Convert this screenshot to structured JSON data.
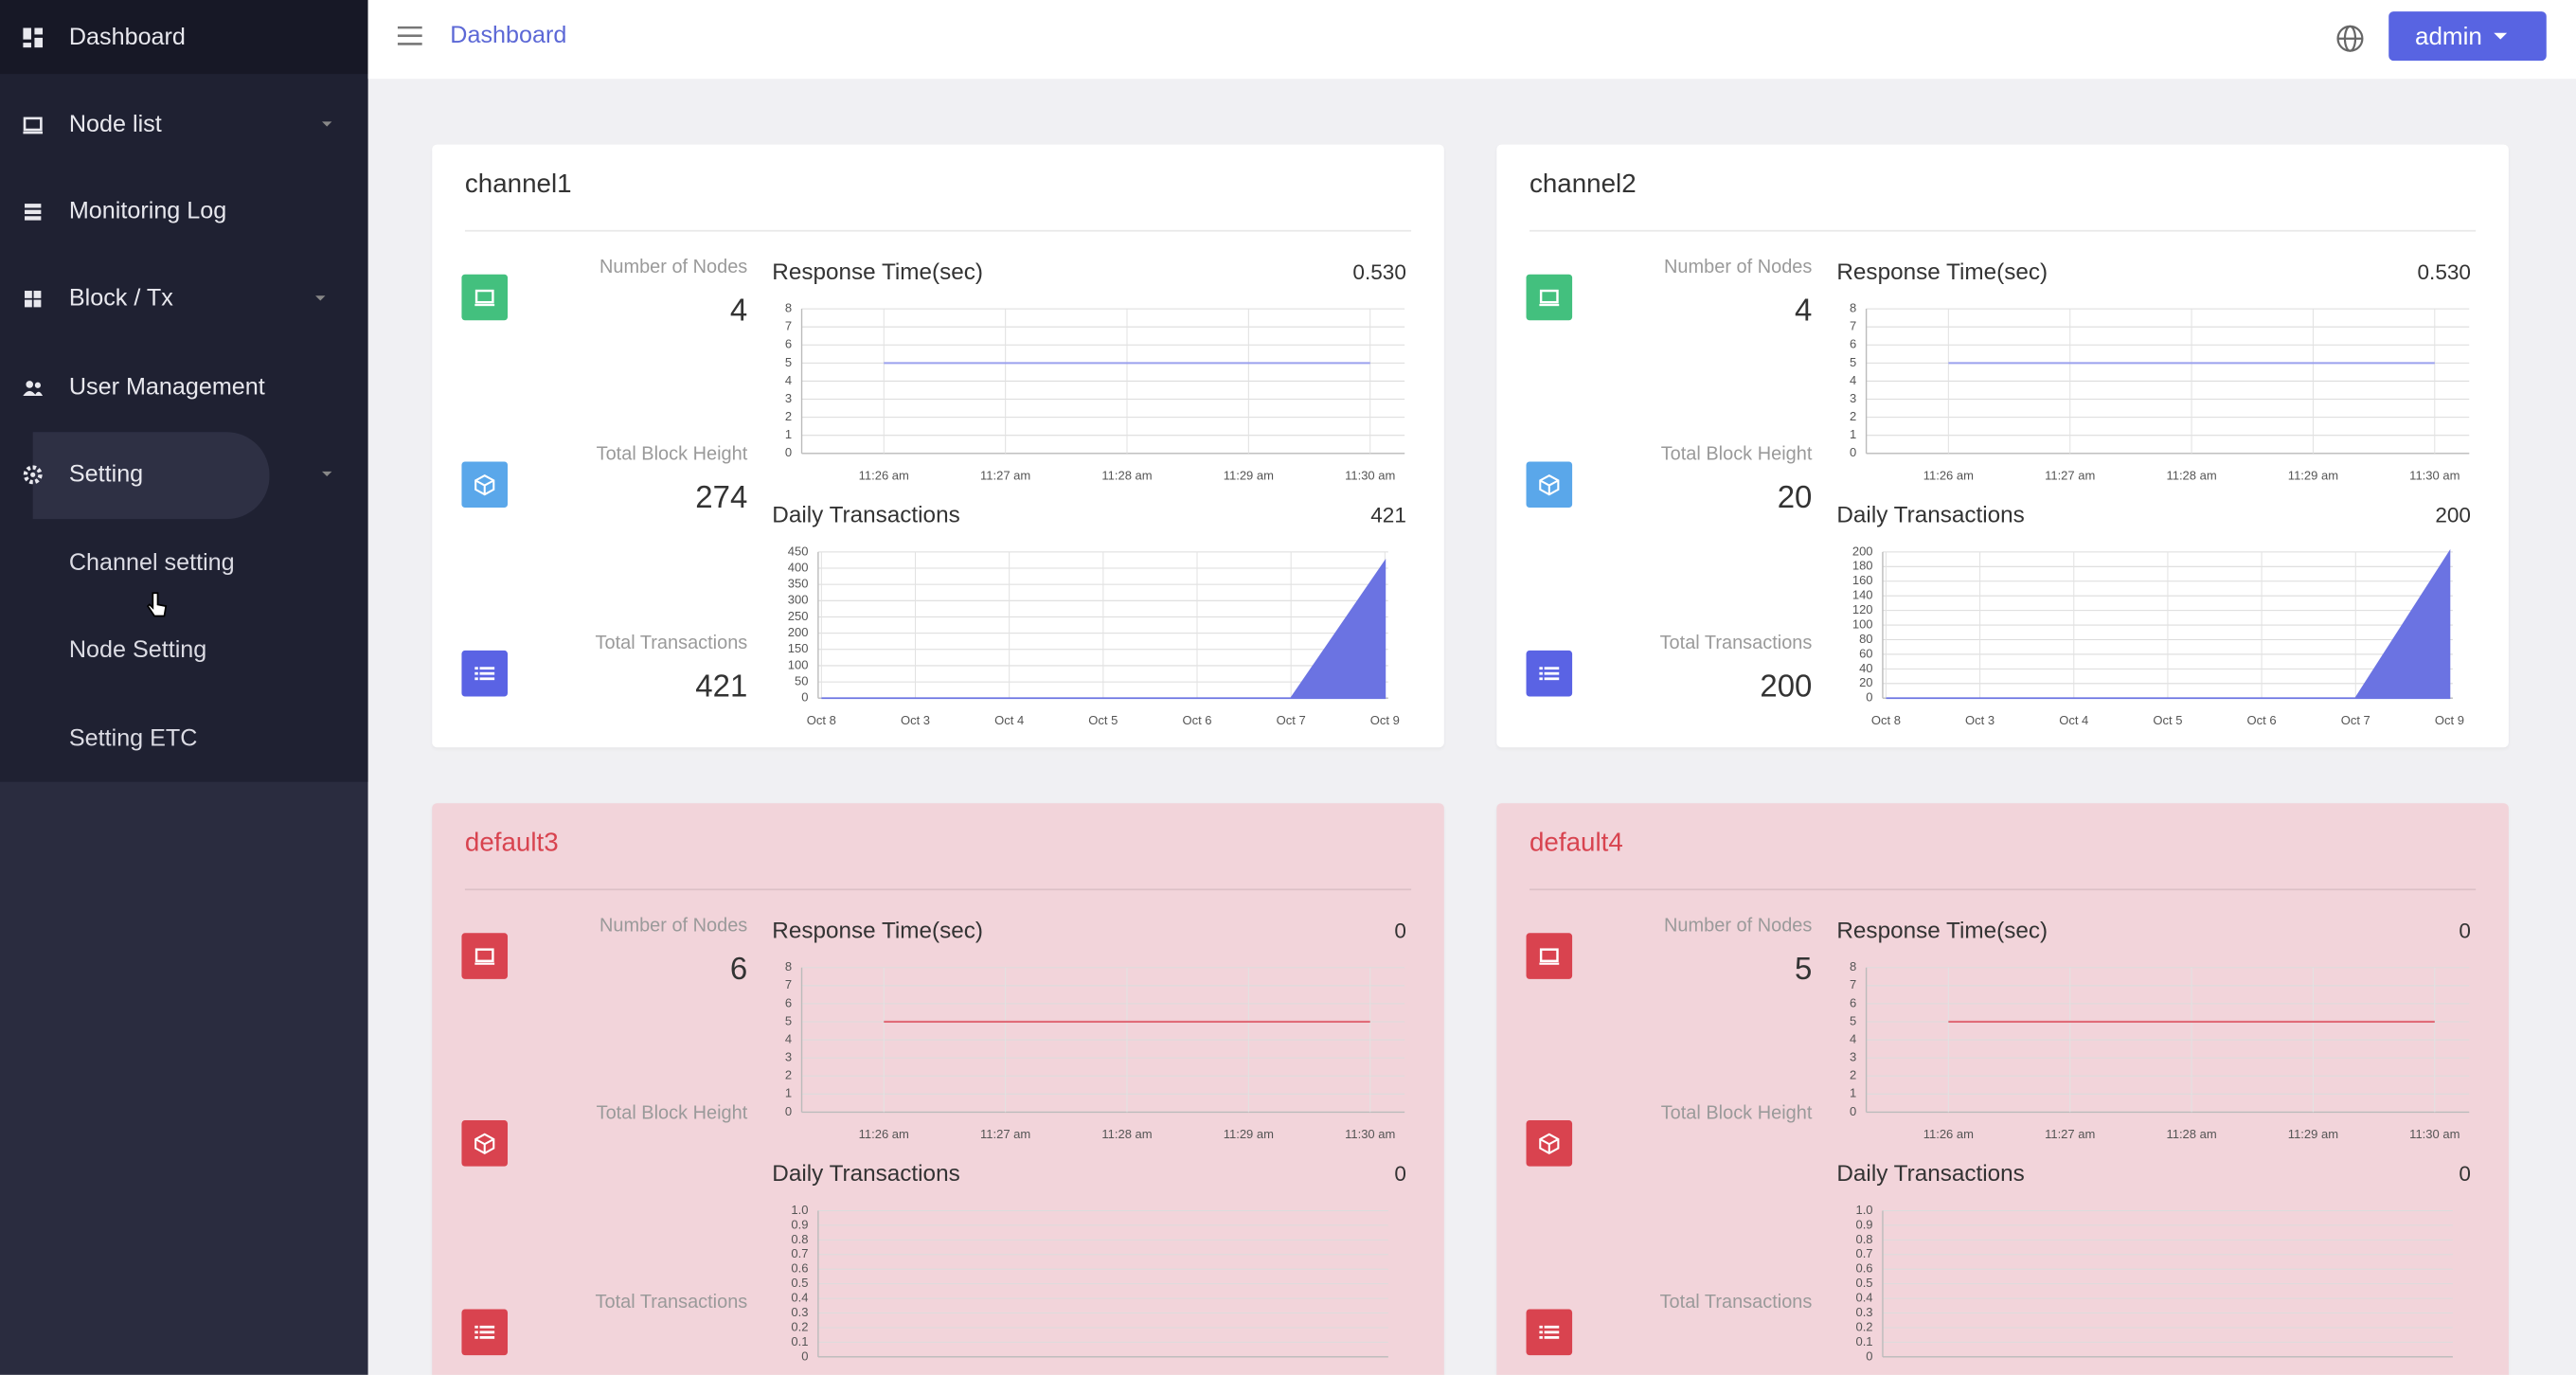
{
  "sidebar": {
    "items": [
      {
        "label": "Dashboard"
      },
      {
        "label": "Node list"
      },
      {
        "label": "Monitoring Log"
      },
      {
        "label": "Block / Tx"
      },
      {
        "label": "User Management"
      },
      {
        "label": "Setting"
      }
    ],
    "submenu": [
      {
        "label": "Channel setting"
      },
      {
        "label": "Node Setting"
      },
      {
        "label": "Setting ETC"
      }
    ]
  },
  "header": {
    "breadcrumb": "Dashboard",
    "user": "admin"
  },
  "channels": [
    {
      "name": "channel1",
      "background": "#ffffff",
      "title_color": "#333333",
      "icon_colors": [
        "#43c07e",
        "#5aa7ea",
        "#5a63e4"
      ],
      "stats": [
        {
          "label": "Number of Nodes",
          "value": 4
        },
        {
          "label": "Total Block Height",
          "value": 274
        },
        {
          "label": "Total Transactions",
          "value": 421
        }
      ],
      "response": {
        "type": "line",
        "title": "Response Time(sec)",
        "value": "0.530",
        "x": [
          "11:26 am",
          "11:27 am",
          "11:28 am",
          "11:29 am",
          "11:30 am"
        ],
        "values": [
          5,
          5,
          5,
          5,
          5
        ],
        "color": "#9aa0ee",
        "ylim": [
          0,
          8
        ],
        "yticks": [
          0,
          1,
          2,
          3,
          4,
          5,
          6,
          7,
          8
        ]
      },
      "daily": {
        "type": "area",
        "title": "Daily Transactions",
        "value": 421,
        "categories": [
          "Oct 8",
          "Oct 3",
          "Oct 4",
          "Oct 5",
          "Oct 6",
          "Oct 7",
          "Oct 9"
        ],
        "values": [
          0,
          0,
          0,
          0,
          0,
          0,
          421
        ],
        "color": "#6b73e2",
        "ylim": [
          0,
          450
        ],
        "yticks": [
          0,
          50,
          100,
          150,
          200,
          250,
          300,
          350,
          400,
          450
        ]
      }
    },
    {
      "name": "channel2",
      "background": "#ffffff",
      "title_color": "#333333",
      "icon_colors": [
        "#43c07e",
        "#5aa7ea",
        "#5a63e4"
      ],
      "stats": [
        {
          "label": "Number of Nodes",
          "value": 4
        },
        {
          "label": "Total Block Height",
          "value": 20
        },
        {
          "label": "Total Transactions",
          "value": 200
        }
      ],
      "response": {
        "type": "line",
        "title": "Response Time(sec)",
        "value": "0.530",
        "x": [
          "11:26 am",
          "11:27 am",
          "11:28 am",
          "11:29 am",
          "11:30 am"
        ],
        "values": [
          5,
          5,
          5,
          5,
          5
        ],
        "color": "#9aa0ee",
        "ylim": [
          0,
          8
        ],
        "yticks": [
          0,
          1,
          2,
          3,
          4,
          5,
          6,
          7,
          8
        ]
      },
      "daily": {
        "type": "area",
        "title": "Daily Transactions",
        "value": 200,
        "categories": [
          "Oct 8",
          "Oct 3",
          "Oct 4",
          "Oct 5",
          "Oct 6",
          "Oct 7",
          "Oct 9"
        ],
        "values": [
          0,
          0,
          0,
          0,
          0,
          0,
          200
        ],
        "color": "#6b73e2",
        "ylim": [
          0,
          200
        ],
        "yticks": [
          0,
          20,
          40,
          60,
          80,
          100,
          120,
          140,
          160,
          180,
          200
        ]
      }
    },
    {
      "name": "default3",
      "background": "#f2d4da",
      "title_color": "#d8434f",
      "icon_colors": [
        "#d9434f",
        "#d9434f",
        "#d9434f"
      ],
      "stats": [
        {
          "label": "Number of Nodes",
          "value": 6
        },
        {
          "label": "Total Block Height"
        },
        {
          "label": "Total Transactions"
        }
      ],
      "response": {
        "type": "line",
        "title": "Response Time(sec)",
        "value": 0,
        "x": [
          "11:26 am",
          "11:27 am",
          "11:28 am",
          "11:29 am",
          "11:30 am"
        ],
        "values": [
          5,
          5,
          5,
          5,
          5
        ],
        "color": "#e06c78",
        "ylim": [
          0,
          8
        ],
        "yticks": [
          0,
          1,
          2,
          3,
          4,
          5,
          6,
          7,
          8
        ]
      },
      "daily": {
        "type": "area",
        "title": "Daily Transactions",
        "value": 0,
        "color": "#6b73e2",
        "ylim": [
          0,
          1
        ],
        "yticks": [
          0,
          0.1,
          0.2,
          0.3,
          0.4,
          0.5,
          0.6,
          0.7,
          0.8,
          0.9,
          {
            "value": 1,
            "label": "1.0"
          }
        ]
      }
    },
    {
      "name": "default4",
      "background": "#f2d4da",
      "title_color": "#d8434f",
      "icon_colors": [
        "#d9434f",
        "#d9434f",
        "#d9434f"
      ],
      "stats": [
        {
          "label": "Number of Nodes",
          "value": 5
        },
        {
          "label": "Total Block Height"
        },
        {
          "label": "Total Transactions"
        }
      ],
      "response": {
        "type": "line",
        "title": "Response Time(sec)",
        "value": 0,
        "x": [
          "11:26 am",
          "11:27 am",
          "11:28 am",
          "11:29 am",
          "11:30 am"
        ],
        "values": [
          5,
          5,
          5,
          5,
          5
        ],
        "color": "#e06c78",
        "ylim": [
          0,
          8
        ],
        "yticks": [
          0,
          1,
          2,
          3,
          4,
          5,
          6,
          7,
          8
        ]
      },
      "daily": {
        "type": "area",
        "title": "Daily Transactions",
        "value": 0,
        "color": "#6b73e2",
        "ylim": [
          0,
          1
        ],
        "yticks": [
          0,
          0.1,
          0.2,
          0.3,
          0.4,
          0.5,
          0.6,
          0.7,
          0.8,
          0.9,
          {
            "value": 1,
            "label": "1.0"
          }
        ]
      }
    }
  ]
}
